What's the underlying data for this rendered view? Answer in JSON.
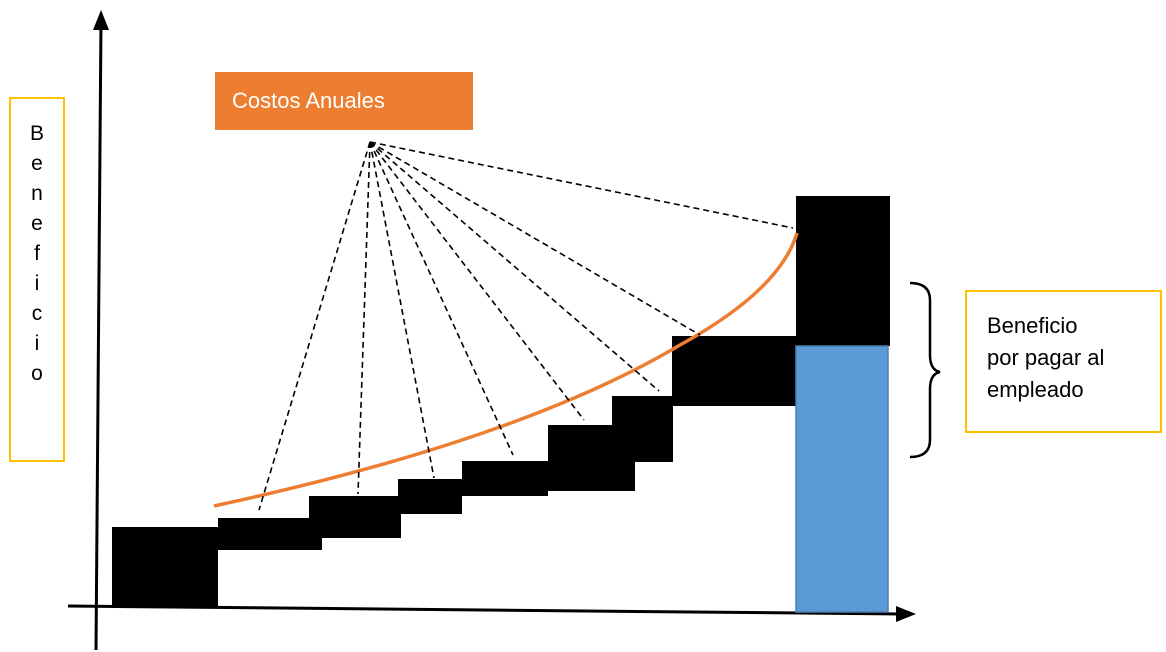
{
  "ylabel": "B\ne\nn\ne\nf\ni\nc\ni\no",
  "costos_label": "Costos Anuales",
  "beneficio_label": "Beneficio\npor pagar al\nempleado",
  "colors": {
    "curve": "#ed7d31",
    "label_fill": "#ed7d31",
    "bar_blue": "#5b9bd5",
    "box_border": "#ffc000",
    "steps": "#000000"
  },
  "icons": [
    "x-axis-arrow-icon",
    "y-axis-arrow-icon",
    "brace-icon"
  ]
}
